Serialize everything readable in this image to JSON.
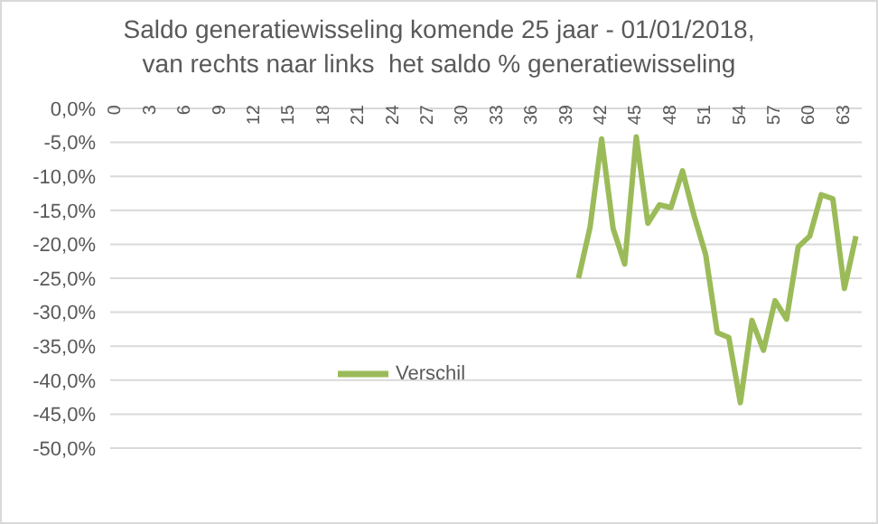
{
  "chart_data": {
    "type": "line",
    "title": "Saldo generatiewisseling komende 25 jaar - 01/01/2018,\nvan rechts naar links  het saldo % generatiewisseling",
    "categories": [
      "0",
      null,
      null,
      "3",
      null,
      null,
      "6",
      null,
      null,
      "9",
      null,
      null,
      "12",
      null,
      null,
      "15",
      null,
      null,
      "18",
      null,
      null,
      "21",
      null,
      null,
      "24",
      null,
      null,
      "27",
      null,
      null,
      "30",
      null,
      null,
      "33",
      null,
      null,
      "36",
      null,
      null,
      "39",
      null,
      null,
      "42",
      null,
      null,
      "45",
      null,
      null,
      "48",
      null,
      null,
      "51",
      null,
      null,
      "54",
      null,
      null,
      "57",
      null,
      null,
      "60",
      null,
      null,
      "63",
      null
    ],
    "series": [
      {
        "name": "Verschil",
        "color": "#9bbb59",
        "values": [
          null,
          null,
          null,
          null,
          null,
          null,
          null,
          null,
          null,
          null,
          null,
          null,
          null,
          null,
          null,
          null,
          null,
          null,
          null,
          null,
          null,
          null,
          null,
          null,
          null,
          null,
          null,
          null,
          null,
          null,
          null,
          null,
          null,
          null,
          null,
          null,
          null,
          null,
          null,
          null,
          -25,
          -17.5,
          -4.5,
          -17.7,
          -22.9,
          -4.2,
          -16.9,
          -14.2,
          -14.6,
          -9.2,
          -15.8,
          -21.5,
          -33,
          -33.7,
          -43.3,
          -31.2,
          -35.6,
          -28.3,
          -31,
          -20.4,
          -18.8,
          -12.7,
          -13.3,
          -26.5,
          -18.8
        ]
      }
    ],
    "ylim": [
      -50,
      0
    ],
    "yticks": [
      {
        "value": 0,
        "label": "0,0%"
      },
      {
        "value": -5,
        "label": "-5,0%"
      },
      {
        "value": -10,
        "label": "-10,0%"
      },
      {
        "value": -15,
        "label": "-15,0%"
      },
      {
        "value": -20,
        "label": "-20,0%"
      },
      {
        "value": -25,
        "label": "-25,0%"
      },
      {
        "value": -30,
        "label": "-30,0%"
      },
      {
        "value": -35,
        "label": "-35,0%"
      },
      {
        "value": -40,
        "label": "-40,0%"
      },
      {
        "value": -45,
        "label": "-45,0%"
      },
      {
        "value": -50,
        "label": "-50,0%"
      }
    ],
    "grid": "y",
    "legend": "bottom left"
  }
}
